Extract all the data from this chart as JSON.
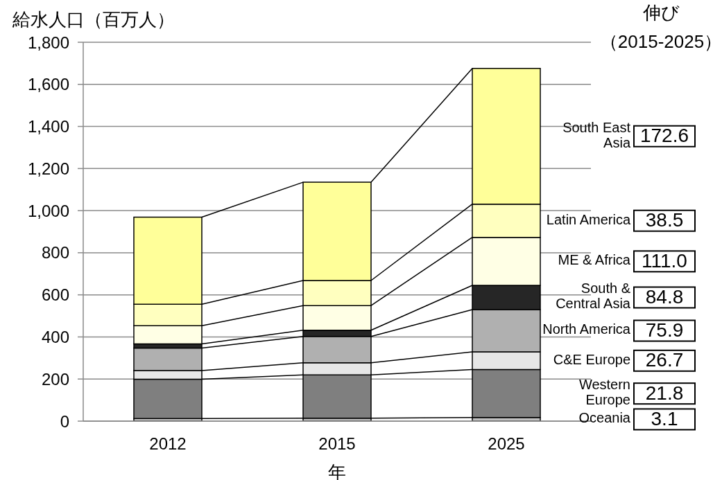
{
  "chart_data": {
    "type": "bar",
    "stacked": true,
    "ylabel": "給水人口（百万人）",
    "xlabel": "年",
    "categories": [
      "2012",
      "2015",
      "2025"
    ],
    "ylim": [
      0,
      1800
    ],
    "yticks": [
      0,
      200,
      400,
      600,
      800,
      {
        "value": 1000,
        "label": "1,000"
      },
      {
        "value": 1200,
        "label": "1,200"
      },
      {
        "value": 1400,
        "label": "1,400"
      },
      {
        "value": 1600,
        "label": "1,600"
      },
      {
        "value": 1800,
        "label": "1,800"
      }
    ],
    "grid": "y",
    "legend": "right",
    "series": [
      {
        "name": "Oceania",
        "color": "#c0c0c0",
        "values": [
          12,
          14,
          17
        ]
      },
      {
        "name": "Western Europe",
        "color": "#7f7f7f",
        "values": [
          187,
          206,
          228
        ]
      },
      {
        "name": "C&E Europe",
        "color": "#e6e6e6",
        "values": [
          41,
          57,
          84
        ]
      },
      {
        "name": "North America",
        "color": "#b0b0b0",
        "values": [
          107,
          125,
          201
        ]
      },
      {
        "name": "South & Central Asia",
        "color": "#262626",
        "values": [
          20,
          30,
          115
        ]
      },
      {
        "name": "ME & Africa",
        "color": "#ffffe5",
        "values": [
          86,
          117,
          228
        ]
      },
      {
        "name": "Latin America",
        "color": "#ffffbf",
        "values": [
          102,
          119,
          158
        ]
      },
      {
        "name": "South East Asia",
        "color": "#ffff99",
        "values": [
          414,
          467,
          645
        ]
      }
    ],
    "annotations": [
      "伸び",
      "（2015-2025）",
      "3.1",
      "21.8",
      "26.7",
      "75.9",
      "84.8",
      "111.0",
      "38.5",
      "172.6"
    ]
  }
}
